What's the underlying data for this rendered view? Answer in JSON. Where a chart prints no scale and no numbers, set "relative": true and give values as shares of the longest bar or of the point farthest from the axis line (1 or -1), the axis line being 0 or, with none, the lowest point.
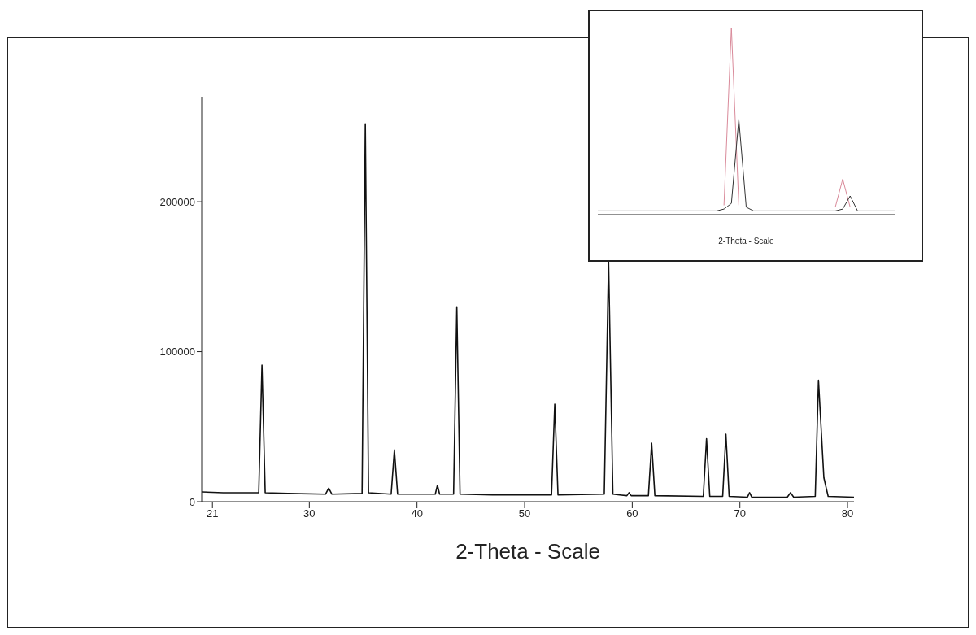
{
  "chart_data": [
    {
      "type": "line",
      "xlabel": "2-Theta - Scale",
      "xlim": [
        20,
        80.6
      ],
      "xticks": [
        21,
        30,
        40,
        50,
        60,
        70,
        80
      ],
      "ylim": [
        0,
        270000
      ],
      "yticks": [
        0,
        100000,
        200000
      ],
      "marker": "none",
      "line_style": "solid",
      "series": [
        {
          "color": "#111111",
          "x": [
            20,
            22,
            24,
            25.3,
            25.6,
            25.9,
            28,
            31.5,
            31.8,
            32.1,
            34.9,
            35.2,
            35.5,
            37.6,
            37.9,
            38.2,
            41.7,
            41.9,
            42.1,
            43.4,
            43.7,
            44.0,
            47,
            52.5,
            52.8,
            53.1,
            57.4,
            57.8,
            58.2,
            59.5,
            59.7,
            59.9,
            61.5,
            61.8,
            62.1,
            66.6,
            66.9,
            67.2,
            68.4,
            68.7,
            69.0,
            70.7,
            70.9,
            71.1,
            74.4,
            74.7,
            75.0,
            77.0,
            77.3,
            77.8,
            78.2,
            80.6
          ],
          "values": [
            6500,
            6000,
            6000,
            6000,
            91000,
            6000,
            5500,
            5000,
            9000,
            5000,
            5500,
            252000,
            6000,
            5000,
            34500,
            5000,
            5000,
            11000,
            5000,
            5000,
            130000,
            5000,
            4500,
            4500,
            65000,
            4500,
            5000,
            160000,
            5000,
            4000,
            6000,
            4000,
            4000,
            39000,
            4000,
            3500,
            42000,
            3500,
            3500,
            45000,
            3500,
            3000,
            6000,
            3000,
            3000,
            6000,
            3000,
            3500,
            81000,
            16000,
            3500,
            3000
          ]
        }
      ]
    },
    {
      "type": "line",
      "xlabel": "2-Theta - Scale",
      "relative": true,
      "categories": [
        null,
        null,
        null,
        null,
        null,
        null,
        null,
        null,
        null,
        null,
        null,
        null,
        null,
        null,
        null,
        null,
        null,
        null,
        null,
        null,
        null,
        null,
        null,
        null,
        null,
        null,
        null,
        null,
        null,
        null,
        null,
        null,
        null,
        null,
        null,
        null,
        null,
        null,
        null,
        null,
        null
      ],
      "marker": "none",
      "line_style": "solid",
      "series": [
        {
          "color": "#d98a9a",
          "values": [
            null,
            null,
            null,
            null,
            null,
            null,
            null,
            null,
            null,
            null,
            null,
            null,
            null,
            null,
            null,
            null,
            null,
            0.05,
            1,
            0.05,
            null,
            null,
            null,
            null,
            null,
            null,
            null,
            null,
            null,
            null,
            null,
            null,
            0.04,
            0.19,
            0.04,
            null,
            null,
            null,
            null,
            null,
            null
          ]
        },
        {
          "color": "#333333",
          "values": [
            0.02,
            0.02,
            0.02,
            0.02,
            0.02,
            0.02,
            0.02,
            0.02,
            0.02,
            0.02,
            0.02,
            0.02,
            0.02,
            0.02,
            0.02,
            0.02,
            0.02,
            0.03,
            0.06,
            0.51,
            0.04,
            0.02,
            0.02,
            0.02,
            0.02,
            0.02,
            0.02,
            0.02,
            0.02,
            0.02,
            0.02,
            0.02,
            0.02,
            0.03,
            0.1,
            0.02,
            0.02,
            0.02,
            0.02,
            0.02,
            0.02
          ]
        }
      ]
    }
  ]
}
